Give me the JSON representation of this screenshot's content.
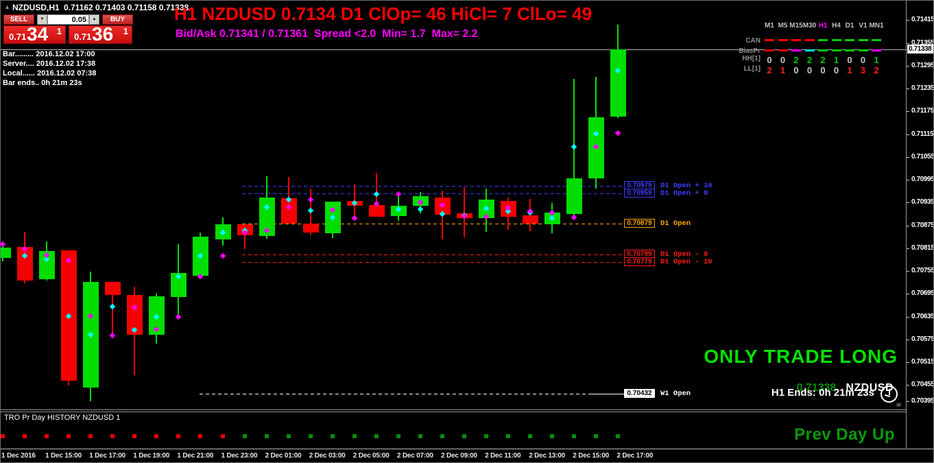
{
  "icons": {
    "collapse": "▲",
    "spin_up": "▲",
    "spin_down": "▼",
    "skull": "☠"
  },
  "colors": {
    "candle_up": "#00DE00",
    "candle_down": "#F50000",
    "marker_cyan": "#00FFFF",
    "marker_magenta": "#FF00FF",
    "bid_line": "#B4B4C6",
    "square_red": "#E80000",
    "square_green": "#0B8A0B"
  },
  "title_bar": {
    "symbol": "NZDUSD,H1",
    "ohlc": "0.71162 0.71403 0.71158 0.71338"
  },
  "trade_widget": {
    "sell_label": "SELL",
    "buy_label": "BUY",
    "volume": "0.05",
    "sell_price": {
      "prefix": "0.71",
      "big": "34",
      "sup": "1"
    },
    "buy_price": {
      "prefix": "0.71",
      "big": "36",
      "sup": "1"
    }
  },
  "info_panel": {
    "lines": [
      "Bar......... 2016.12.02 17:00",
      "Server.... 2016.12.02 17:38",
      "Local...... 2016.12.02 07:38",
      "Bar ends.. 0h 21m 23s"
    ]
  },
  "header": {
    "line1": "H1 NZDUSD 0.7134 D1 ClOp= 46 HiCl= 7 ClLo= 49",
    "line2": "Bid/Ask 0.71341 / 0.71361  Spread <2.0  Min= 1.7  Max= 2.2"
  },
  "tf_panel": {
    "timeframes": [
      "M1",
      "M5",
      "M15",
      "M30",
      "H1",
      "H4",
      "D1",
      "V1",
      "MN1"
    ],
    "highlight": "H1",
    "rows": [
      {
        "label": "CAN",
        "type": "dash",
        "colors": [
          "#FF0000",
          "#FF0000",
          "#FF0000",
          "#FF0000",
          "#00CE00",
          "#00CE00",
          "#00CE00",
          "#00CE00",
          "#00CE00"
        ]
      },
      {
        "label": "BiasPr",
        "type": "dash",
        "colors": [
          "#FF0000",
          "#FF0000",
          "#FF00FF",
          "#00FFFF",
          "#00CE00",
          "#00CE00",
          "#00CE00",
          "#00CE00",
          "#FF00FF"
        ]
      },
      {
        "label": "HH[1]",
        "type": "num",
        "active_color": "#00CE00",
        "values": [
          0,
          0,
          2,
          2,
          2,
          1,
          0,
          0,
          1
        ]
      },
      {
        "label": "LL[1]",
        "type": "num",
        "active_color": "#FF2020",
        "values": [
          2,
          1,
          0,
          0,
          0,
          0,
          1,
          3,
          2
        ]
      }
    ]
  },
  "price_axis": {
    "ticks": [
      "0.71415",
      "0.71355",
      "0.71295",
      "0.71235",
      "0.71175",
      "0.71115",
      "0.71055",
      "0.70995",
      "0.70935",
      "0.70875",
      "0.70815",
      "0.70755",
      "0.70695",
      "0.70635",
      "0.70575",
      "0.70515",
      "0.70455",
      "0.70395"
    ],
    "current": "0.71338"
  },
  "chart_data": {
    "type": "candlestick",
    "symbol": "NZDUSD",
    "timeframe": "H1",
    "y_axis": {
      "min": 0.70395,
      "max": 0.71415,
      "tick_step": 0.0006
    },
    "bid_line_price": 0.71338,
    "x_axis_labels": [
      "1 Dec 2016",
      "1 Dec 15:00",
      "1 Dec 17:00",
      "1 Dec 19:00",
      "1 Dec 21:00",
      "1 Dec 23:00",
      "2 Dec 01:00",
      "2 Dec 03:00",
      "2 Dec 05:00",
      "2 Dec 07:00",
      "2 Dec 09:00",
      "2 Dec 11:00",
      "2 Dec 13:00",
      "2 Dec 15:00",
      "2 Dec 17:00"
    ],
    "levels": [
      {
        "price": 0.70979,
        "label": "0.70979",
        "text": "D1 Open + 10",
        "color": "#3C3CFF",
        "kind": "d1"
      },
      {
        "price": 0.70959,
        "label": "0.70959",
        "text": "D1 Open + 8",
        "color": "#3C3CFF",
        "kind": "d1"
      },
      {
        "price": 0.70879,
        "label": "0.70879",
        "text": "D1 Open",
        "color": "#FFA500",
        "kind": "d1"
      },
      {
        "price": 0.70799,
        "label": "0.70799",
        "text": "D1 Open - 8",
        "color": "#FF1A1A",
        "kind": "d1"
      },
      {
        "price": 0.70779,
        "label": "0.70779",
        "text": "D1 Open - 10",
        "color": "#FF1A1A",
        "kind": "d1"
      },
      {
        "price": 0.70432,
        "label": "0.70432",
        "text": "W1 Open",
        "color": "#FFFFFF",
        "kind": "w1"
      }
    ],
    "candles": [
      {
        "t": "1 Dec 13:00",
        "o": 0.70789,
        "h": 0.70831,
        "l": 0.7078,
        "c": 0.70816,
        "magenta": 0.70825
      },
      {
        "t": "1 Dec 14:00",
        "o": 0.70818,
        "h": 0.70858,
        "l": 0.70722,
        "c": 0.70729,
        "magenta": 0.70812,
        "cyan": 0.70794
      },
      {
        "t": "1 Dec 15:00",
        "o": 0.70734,
        "h": 0.70833,
        "l": 0.70729,
        "c": 0.70807,
        "magenta": 0.70796,
        "cyan": 0.70785
      },
      {
        "t": "1 Dec 16:00",
        "o": 0.70809,
        "h": 0.70809,
        "l": 0.70454,
        "c": 0.70467,
        "magenta": 0.70783,
        "cyan": 0.70636
      },
      {
        "t": "1 Dec 17:00",
        "o": 0.70449,
        "h": 0.70754,
        "l": 0.70412,
        "c": 0.70727,
        "magenta": 0.70636,
        "cyan": 0.70587
      },
      {
        "t": "1 Dec 18:00",
        "o": 0.70727,
        "h": 0.70727,
        "l": 0.70583,
        "c": 0.70691,
        "cyan": 0.70661,
        "magenta": 0.70585
      },
      {
        "t": "1 Dec 19:00",
        "o": 0.70691,
        "h": 0.70713,
        "l": 0.7048,
        "c": 0.70587,
        "magenta": 0.7066,
        "cyan": 0.706
      },
      {
        "t": "1 Dec 20:00",
        "o": 0.70587,
        "h": 0.70696,
        "l": 0.70563,
        "c": 0.70689,
        "cyan": 0.70634,
        "magenta": 0.70601
      },
      {
        "t": "1 Dec 21:00",
        "o": 0.70687,
        "h": 0.70825,
        "l": 0.70631,
        "c": 0.70749,
        "cyan": 0.7074,
        "magenta": 0.70634
      },
      {
        "t": "1 Dec 22:00",
        "o": 0.70742,
        "h": 0.70856,
        "l": 0.70736,
        "c": 0.70845,
        "cyan": 0.70794,
        "magenta": 0.70741
      },
      {
        "t": "1 Dec 23:00",
        "o": 0.70838,
        "h": 0.70896,
        "l": 0.70822,
        "c": 0.70878,
        "cyan": 0.70856,
        "magenta": 0.70794
      },
      {
        "t": "2 Dec 00:00",
        "o": 0.70878,
        "h": 0.70878,
        "l": 0.70813,
        "c": 0.70849,
        "cyan": 0.70861,
        "magenta": 0.70856
      },
      {
        "t": "2 Dec 01:00",
        "o": 0.70847,
        "h": 0.71005,
        "l": 0.7084,
        "c": 0.70949,
        "cyan": 0.70923,
        "magenta": 0.70861
      },
      {
        "t": "2 Dec 02:00",
        "o": 0.70947,
        "h": 0.71003,
        "l": 0.7088,
        "c": 0.7088,
        "cyan": 0.70943,
        "magenta": 0.70923
      },
      {
        "t": "2 Dec 03:00",
        "o": 0.7088,
        "h": 0.70972,
        "l": 0.70849,
        "c": 0.70856,
        "magenta": 0.70943,
        "cyan": 0.70914
      },
      {
        "t": "2 Dec 04:00",
        "o": 0.70854,
        "h": 0.70938,
        "l": 0.70841,
        "c": 0.70938,
        "magenta": 0.70916,
        "cyan": 0.70896
      },
      {
        "t": "2 Dec 05:00",
        "o": 0.7094,
        "h": 0.70982,
        "l": 0.70891,
        "c": 0.70927,
        "cyan": 0.70934,
        "magenta": 0.70894
      },
      {
        "t": "2 Dec 06:00",
        "o": 0.70929,
        "h": 0.71014,
        "l": 0.70898,
        "c": 0.70898,
        "cyan": 0.70958,
        "magenta": 0.70932
      },
      {
        "t": "2 Dec 07:00",
        "o": 0.709,
        "h": 0.7096,
        "l": 0.70887,
        "c": 0.70927,
        "magenta": 0.70958,
        "cyan": 0.70918
      },
      {
        "t": "2 Dec 08:00",
        "o": 0.70927,
        "h": 0.70963,
        "l": 0.70907,
        "c": 0.70952,
        "magenta": 0.70936,
        "cyan": 0.70918
      },
      {
        "t": "2 Dec 09:00",
        "o": 0.70949,
        "h": 0.70967,
        "l": 0.70838,
        "c": 0.70903,
        "magenta": 0.70929,
        "cyan": 0.70905
      },
      {
        "t": "2 Dec 10:00",
        "o": 0.70907,
        "h": 0.70976,
        "l": 0.70843,
        "c": 0.70894,
        "cyan": 0.70902,
        "magenta": 0.709
      },
      {
        "t": "2 Dec 11:00",
        "o": 0.70894,
        "h": 0.70971,
        "l": 0.70858,
        "c": 0.70943,
        "cyan": 0.7092,
        "magenta": 0.70898
      },
      {
        "t": "2 Dec 12:00",
        "o": 0.7094,
        "h": 0.70949,
        "l": 0.70863,
        "c": 0.70898,
        "magenta": 0.70921,
        "cyan": 0.70912
      },
      {
        "t": "2 Dec 13:00",
        "o": 0.70902,
        "h": 0.70945,
        "l": 0.7086,
        "c": 0.7088,
        "magenta": 0.70912,
        "cyan": 0.70908
      },
      {
        "t": "2 Dec 14:00",
        "o": 0.70878,
        "h": 0.70934,
        "l": 0.70854,
        "c": 0.70909,
        "magenta": 0.70909,
        "cyan": 0.70894
      },
      {
        "t": "2 Dec 15:00",
        "o": 0.70905,
        "h": 0.7126,
        "l": 0.70891,
        "c": 0.70998,
        "cyan": 0.71082,
        "magenta": 0.70896
      },
      {
        "t": "2 Dec 16:00",
        "o": 0.70998,
        "h": 0.71265,
        "l": 0.70971,
        "c": 0.7116,
        "cyan": 0.71116,
        "magenta": 0.71082
      },
      {
        "t": "2 Dec 17:00",
        "o": 0.71162,
        "h": 0.71403,
        "l": 0.71158,
        "c": 0.71338,
        "cyan": 0.71282,
        "magenta": 0.71118
      }
    ],
    "prev_day_squares": [
      "red",
      "red",
      "red",
      "red",
      "red",
      "red",
      "red",
      "red",
      "red",
      "red",
      "red",
      "green",
      "green",
      "green",
      "green",
      "green",
      "green",
      "green",
      "green",
      "green",
      "green",
      "green",
      "green",
      "green",
      "green",
      "green",
      "green",
      "green",
      "green"
    ]
  },
  "overlay": {
    "trade_direction": "ONLY TRADE LONG",
    "price": "0.71338",
    "symbol": "NZDUSD",
    "countdown": "H1 Ends: 0h 21m 23s"
  },
  "subwindow": {
    "title": "TRO Pr Day HISTORY NZDUSD 1",
    "note": "Prev Day Up",
    "scale_max": "2",
    "scale_min": "0"
  }
}
